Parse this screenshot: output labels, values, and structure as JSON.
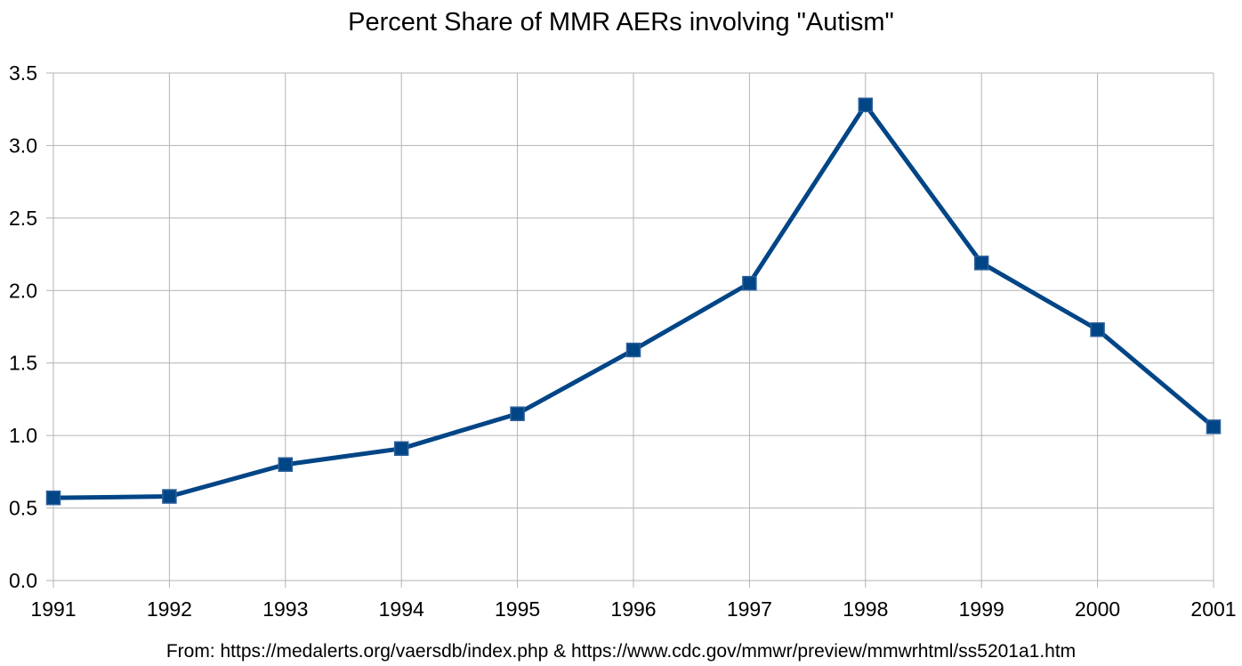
{
  "chart_data": {
    "type": "line",
    "title": "Percent Share of MMR AERs involving \"Autism\"",
    "xlabel": "",
    "ylabel": "",
    "x": [
      "1991",
      "1992",
      "1993",
      "1994",
      "1995",
      "1996",
      "1997",
      "1998",
      "1999",
      "2000",
      "2001"
    ],
    "series": [
      {
        "values": [
          0.57,
          0.58,
          0.8,
          0.91,
          1.15,
          1.59,
          2.05,
          3.28,
          2.19,
          1.73,
          1.06
        ]
      }
    ],
    "ylim": [
      0,
      3.5
    ],
    "yticks": [
      "0.0",
      "0.5",
      "1.0",
      "1.5",
      "2.0",
      "2.5",
      "3.0",
      "3.5"
    ],
    "grid": true,
    "legend": "none",
    "marker": "square",
    "line_color": "#004586",
    "source_note": "From: https://medalerts.org/vaersdb/index.php & https://www.cdc.gov/mmwr/preview/mmwrhtml/ss5201a1.htm"
  }
}
